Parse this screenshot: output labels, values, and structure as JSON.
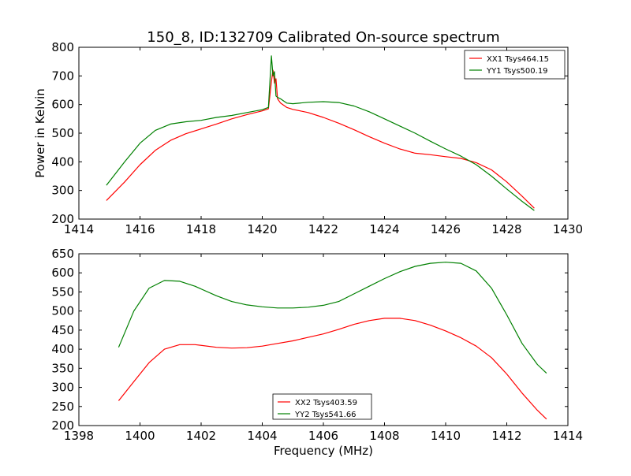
{
  "chart_data": [
    {
      "type": "line",
      "title": "150_8, ID:132709 Calibrated On-source spectrum",
      "xlabel": "",
      "ylabel": "Power in Kelvin",
      "xlim": [
        1414,
        1430
      ],
      "ylim": [
        200,
        800
      ],
      "xticks": [
        1414,
        1416,
        1418,
        1420,
        1422,
        1424,
        1426,
        1428,
        1430
      ],
      "yticks": [
        200,
        300,
        400,
        500,
        600,
        700,
        800
      ],
      "grid": false,
      "legend": "top-right",
      "series": [
        {
          "name": "XX1 Tsys464.15",
          "color": "#ff0000",
          "x": [
            1414.9,
            1415.5,
            1416,
            1416.5,
            1417,
            1417.5,
            1418,
            1418.5,
            1419,
            1419.5,
            1420,
            1420.2,
            1420.3,
            1420.35,
            1420.4,
            1420.45,
            1420.5,
            1420.6,
            1420.8,
            1421,
            1421.5,
            1422,
            1422.5,
            1423,
            1423.5,
            1424,
            1424.5,
            1425,
            1425.5,
            1426,
            1426.5,
            1427,
            1427.5,
            1428,
            1428.5,
            1428.9
          ],
          "y": [
            265,
            330,
            390,
            440,
            475,
            498,
            515,
            532,
            550,
            565,
            578,
            585,
            680,
            720,
            675,
            690,
            620,
            605,
            590,
            583,
            572,
            555,
            535,
            512,
            488,
            465,
            445,
            430,
            425,
            418,
            412,
            397,
            372,
            330,
            280,
            238
          ]
        },
        {
          "name": "YY1 Tsys500.19",
          "color": "#008000",
          "x": [
            1414.9,
            1415.5,
            1416,
            1416.5,
            1417,
            1417.5,
            1418,
            1418.5,
            1419,
            1419.5,
            1420,
            1420.2,
            1420.3,
            1420.35,
            1420.4,
            1420.45,
            1420.5,
            1420.6,
            1420.8,
            1421,
            1421.5,
            1422,
            1422.5,
            1423,
            1423.5,
            1424,
            1424.5,
            1425,
            1425.5,
            1426,
            1426.5,
            1427,
            1427.5,
            1428,
            1428.5,
            1428.9
          ],
          "y": [
            318,
            400,
            465,
            510,
            532,
            540,
            545,
            555,
            562,
            572,
            582,
            590,
            770,
            700,
            715,
            630,
            625,
            620,
            605,
            603,
            608,
            610,
            607,
            595,
            575,
            550,
            525,
            500,
            472,
            445,
            420,
            390,
            350,
            305,
            262,
            230
          ]
        }
      ]
    },
    {
      "type": "line",
      "title": "",
      "xlabel": "Frequency (MHz)",
      "ylabel": "",
      "xlim": [
        1398,
        1414
      ],
      "ylim": [
        200,
        650
      ],
      "xticks": [
        1398,
        1400,
        1402,
        1404,
        1406,
        1408,
        1410,
        1412,
        1414
      ],
      "yticks": [
        200,
        250,
        300,
        350,
        400,
        450,
        500,
        550,
        600,
        650
      ],
      "grid": false,
      "legend": "bottom-center",
      "series": [
        {
          "name": "XX2 Tsys403.59",
          "color": "#ff0000",
          "x": [
            1399.3,
            1399.8,
            1400.3,
            1400.8,
            1401.3,
            1401.8,
            1402.5,
            1403,
            1403.5,
            1404,
            1404.5,
            1405,
            1405.5,
            1406,
            1406.5,
            1407,
            1407.5,
            1408,
            1408.5,
            1409,
            1409.5,
            1410,
            1410.5,
            1411,
            1411.5,
            1412,
            1412.5,
            1413,
            1413.3
          ],
          "y": [
            265,
            315,
            365,
            400,
            412,
            412,
            405,
            403,
            404,
            408,
            415,
            422,
            431,
            440,
            452,
            465,
            475,
            481,
            481,
            475,
            463,
            448,
            430,
            408,
            378,
            335,
            285,
            240,
            217
          ]
        },
        {
          "name": "YY2 Tsys541.66",
          "color": "#008000",
          "x": [
            1399.3,
            1399.8,
            1400.3,
            1400.8,
            1401.3,
            1401.8,
            1402.5,
            1403,
            1403.5,
            1404,
            1404.5,
            1405,
            1405.5,
            1406,
            1406.5,
            1407,
            1407.5,
            1408,
            1408.5,
            1409,
            1409.5,
            1410,
            1410.5,
            1411,
            1411.5,
            1412,
            1412.5,
            1413,
            1413.3
          ],
          "y": [
            405,
            500,
            560,
            580,
            578,
            565,
            540,
            525,
            516,
            511,
            508,
            508,
            510,
            515,
            525,
            545,
            565,
            585,
            603,
            617,
            625,
            628,
            625,
            605,
            560,
            490,
            415,
            360,
            337
          ]
        }
      ]
    }
  ]
}
